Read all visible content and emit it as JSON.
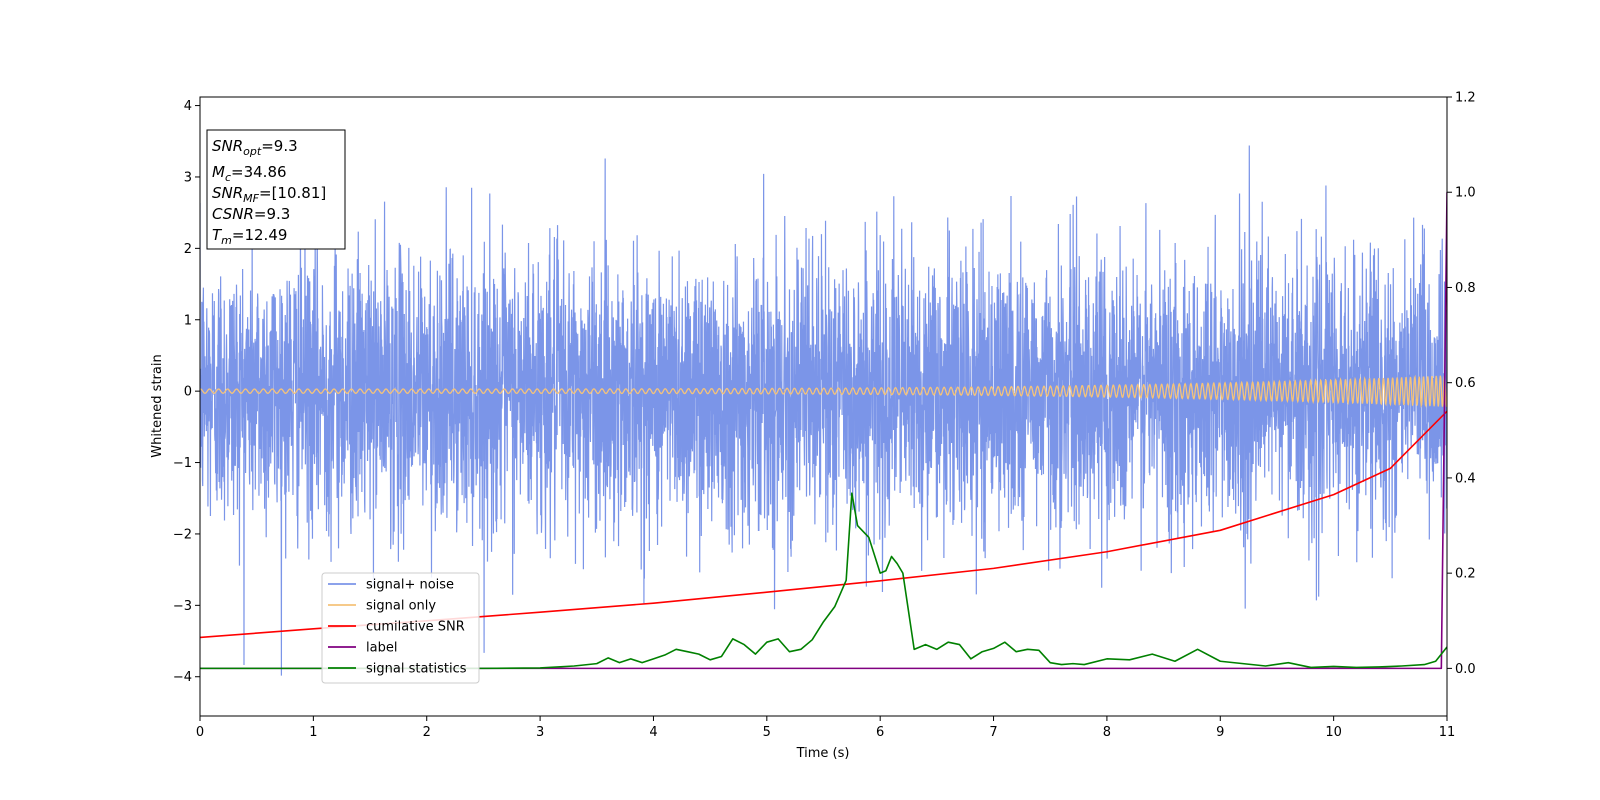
{
  "chart_data": {
    "type": "line",
    "xlabel": "Time (s)",
    "ylabel": "Whitened strain",
    "xlim": [
      0,
      11
    ],
    "ylim_left": [
      -4.55,
      4.12
    ],
    "ylim_right": [
      -0.1,
      1.2
    ],
    "x_ticks": [
      0,
      1,
      2,
      3,
      4,
      5,
      6,
      7,
      8,
      9,
      10,
      11
    ],
    "x_tick_labels": [
      "0",
      "1",
      "2",
      "3",
      "4",
      "5",
      "6",
      "7",
      "8",
      "9",
      "10",
      "11"
    ],
    "y_ticks_left": [
      4,
      3,
      2,
      1,
      0,
      -1,
      -2,
      -3,
      -4
    ],
    "y_tick_labels_left": [
      "4",
      "3",
      "2",
      "1",
      "0",
      "−1",
      "−2",
      "−3",
      "−4"
    ],
    "y_ticks_right": [
      1.2,
      1.0,
      0.8,
      0.6,
      0.4,
      0.2,
      0.0
    ],
    "y_tick_labels_right": [
      "1.2",
      "1.0",
      "0.8",
      "0.6",
      "0.4",
      "0.2",
      "0.0"
    ],
    "legend_position": "lower-left",
    "series": [
      {
        "name": "signal+ noise",
        "axis": "left",
        "color": "#7b95e8",
        "description_values": {
          "typical_range": [
            -2.5,
            2.5
          ],
          "max": 3.72,
          "min": -4.15
        }
      },
      {
        "name": "signal only",
        "axis": "left",
        "color": "#f5c37a",
        "amplitude_start": 0.03,
        "amplitude_end": 0.22
      },
      {
        "name": "cumilative SNR",
        "axis": "right",
        "color": "#ff0000",
        "x": [
          0,
          1,
          2,
          3,
          4,
          5,
          6,
          7,
          8,
          9,
          10,
          10.5,
          11
        ],
        "y": [
          0.065,
          0.083,
          0.1,
          0.118,
          0.137,
          0.16,
          0.184,
          0.21,
          0.245,
          0.29,
          0.365,
          0.42,
          0.54
        ]
      },
      {
        "name": "label",
        "axis": "right",
        "color": "#800080",
        "x": [
          0,
          10.95,
          11
        ],
        "y": [
          0.0,
          0.0,
          1.0
        ]
      },
      {
        "name": "signal statistics",
        "axis": "right",
        "color": "#008000",
        "x": [
          0,
          0.5,
          1,
          1.5,
          2,
          2.5,
          3,
          3.3,
          3.5,
          3.6,
          3.7,
          3.8,
          3.9,
          4.0,
          4.1,
          4.2,
          4.3,
          4.4,
          4.5,
          4.6,
          4.7,
          4.8,
          4.9,
          5.0,
          5.1,
          5.2,
          5.3,
          5.4,
          5.5,
          5.6,
          5.7,
          5.75,
          5.8,
          5.9,
          6.0,
          6.05,
          6.1,
          6.15,
          6.2,
          6.3,
          6.4,
          6.5,
          6.6,
          6.7,
          6.8,
          6.9,
          7.0,
          7.1,
          7.2,
          7.3,
          7.4,
          7.5,
          7.6,
          7.7,
          7.8,
          8.0,
          8.2,
          8.4,
          8.6,
          8.8,
          9.0,
          9.2,
          9.4,
          9.6,
          9.8,
          10.0,
          10.2,
          10.4,
          10.6,
          10.8,
          10.9,
          11.0
        ],
        "y": [
          0.0,
          0.0,
          0.0,
          0.0,
          0.0,
          0.0,
          0.001,
          0.005,
          0.01,
          0.022,
          0.012,
          0.02,
          0.012,
          0.02,
          0.028,
          0.04,
          0.035,
          0.03,
          0.018,
          0.025,
          0.062,
          0.05,
          0.03,
          0.055,
          0.062,
          0.035,
          0.04,
          0.06,
          0.098,
          0.13,
          0.185,
          0.368,
          0.3,
          0.275,
          0.2,
          0.205,
          0.235,
          0.22,
          0.2,
          0.04,
          0.05,
          0.04,
          0.055,
          0.05,
          0.02,
          0.035,
          0.042,
          0.055,
          0.035,
          0.04,
          0.038,
          0.012,
          0.008,
          0.01,
          0.008,
          0.02,
          0.018,
          0.03,
          0.015,
          0.04,
          0.015,
          0.01,
          0.005,
          0.012,
          0.002,
          0.004,
          0.002,
          0.003,
          0.005,
          0.008,
          0.015,
          0.045
        ]
      }
    ],
    "info_box": [
      {
        "sym": "SNR",
        "sub": "opt",
        "val": "=9.3"
      },
      {
        "sym": "M",
        "sub": "c",
        "val": "=34.86"
      },
      {
        "sym": "SNR",
        "sub": "MF",
        "val": "=[10.81]"
      },
      {
        "sym": "CSNR",
        "sub": "",
        "val": "=9.3"
      },
      {
        "sym": "T",
        "sub": "m",
        "val": "=12.49"
      }
    ]
  }
}
